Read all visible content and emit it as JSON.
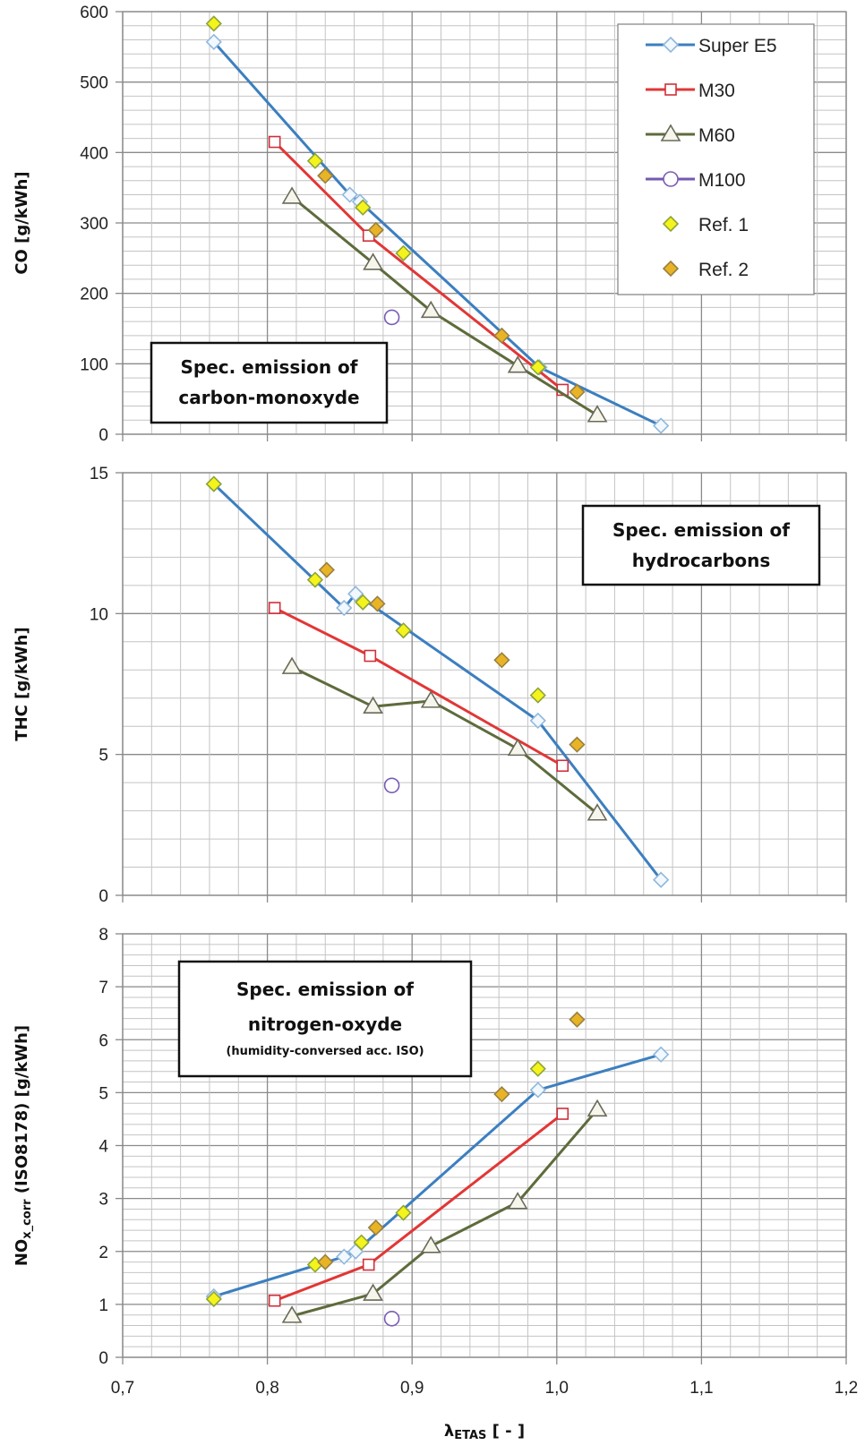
{
  "chart_data": [
    {
      "type": "line",
      "ylabel": "CO [g/kWh]",
      "annotation": [
        "Spec. emission of",
        "carbon-monoxyde"
      ],
      "xlim": [
        0.7,
        1.2
      ],
      "ylim": [
        0,
        600
      ],
      "yticks": [
        "0",
        "100",
        "200",
        "300",
        "400",
        "500",
        "600"
      ],
      "grid": true,
      "legend": "top-right",
      "series": [
        {
          "name": "Super E5",
          "x": [
            0.763,
            0.857,
            0.864,
            0.988,
            1.072
          ],
          "y": [
            557,
            340,
            330,
            95,
            12
          ]
        },
        {
          "name": "M30",
          "x": [
            0.805,
            0.87,
            1.004
          ],
          "y": [
            415,
            282,
            63
          ]
        },
        {
          "name": "M60",
          "x": [
            0.817,
            0.873,
            0.913,
            0.973,
            1.028
          ],
          "y": [
            337,
            243,
            175,
            97,
            27
          ]
        },
        {
          "name": "M100",
          "x": [
            0.886
          ],
          "y": [
            166
          ]
        },
        {
          "name": "Ref. 1",
          "x": [
            0.763,
            0.833,
            0.866,
            0.894,
            0.987
          ],
          "y": [
            583,
            388,
            322,
            257,
            95
          ]
        },
        {
          "name": "Ref. 2",
          "x": [
            0.84,
            0.875,
            0.962,
            1.014
          ],
          "y": [
            367,
            290,
            140,
            60
          ]
        }
      ]
    },
    {
      "type": "line",
      "ylabel": "THC [g/kWh]",
      "annotation": [
        "Spec. emission of",
        "hydrocarbons"
      ],
      "xlim": [
        0.7,
        1.2
      ],
      "ylim": [
        0,
        15
      ],
      "yticks": [
        "0",
        "5",
        "10",
        "15"
      ],
      "grid": true,
      "series": [
        {
          "name": "Super E5",
          "x": [
            0.763,
            0.853,
            0.861,
            0.987,
            1.072
          ],
          "y": [
            14.6,
            10.2,
            10.7,
            6.2,
            0.55
          ]
        },
        {
          "name": "M30",
          "x": [
            0.805,
            0.871,
            1.004
          ],
          "y": [
            10.2,
            8.5,
            4.6
          ]
        },
        {
          "name": "M60",
          "x": [
            0.817,
            0.873,
            0.913,
            0.973,
            1.028
          ],
          "y": [
            8.1,
            6.7,
            6.9,
            5.2,
            2.9
          ]
        },
        {
          "name": "M100",
          "x": [
            0.886
          ],
          "y": [
            3.9
          ]
        },
        {
          "name": "Ref. 1",
          "x": [
            0.763,
            0.833,
            0.866,
            0.894,
            0.987
          ],
          "y": [
            14.6,
            11.2,
            10.4,
            9.4,
            7.1
          ]
        },
        {
          "name": "Ref. 2",
          "x": [
            0.841,
            0.876,
            0.962,
            1.014
          ],
          "y": [
            11.55,
            10.35,
            8.35,
            5.35
          ]
        }
      ]
    },
    {
      "type": "line",
      "ylabel_main": "NO",
      "ylabel_sub": "x_corr",
      "ylabel_rest": " (ISO8178) [g/kWh]",
      "annotation": [
        "Spec. emission of",
        "nitrogen-oxyde",
        "(humidity-conversed acc. ISO)"
      ],
      "xlim": [
        0.7,
        1.2
      ],
      "ylim": [
        0,
        8
      ],
      "yticks": [
        "0",
        "1",
        "2",
        "3",
        "4",
        "5",
        "6",
        "7",
        "8"
      ],
      "xticks": [
        "0,7",
        "0,8",
        "0,9",
        "1,0",
        "1,1",
        "1,2"
      ],
      "xlabel_main": "λ",
      "xlabel_sub": "ETAS",
      "xlabel_rest": " [ - ]",
      "grid": true,
      "series": [
        {
          "name": "Super E5",
          "x": [
            0.763,
            0.853,
            0.861,
            0.987,
            1.072
          ],
          "y": [
            1.15,
            1.9,
            2.0,
            5.05,
            5.72
          ]
        },
        {
          "name": "M30",
          "x": [
            0.805,
            0.87,
            1.004
          ],
          "y": [
            1.07,
            1.75,
            4.6
          ]
        },
        {
          "name": "M60",
          "x": [
            0.817,
            0.873,
            0.913,
            0.973,
            1.028
          ],
          "y": [
            0.78,
            1.2,
            2.1,
            2.93,
            4.68
          ]
        },
        {
          "name": "M100",
          "x": [
            0.886
          ],
          "y": [
            0.73
          ]
        },
        {
          "name": "Ref. 1",
          "x": [
            0.763,
            0.833,
            0.865,
            0.894,
            0.987
          ],
          "y": [
            1.1,
            1.75,
            2.17,
            2.73,
            5.45
          ]
        },
        {
          "name": "Ref. 2",
          "x": [
            0.84,
            0.875,
            0.962,
            1.014
          ],
          "y": [
            1.8,
            2.45,
            4.97,
            6.38
          ]
        }
      ]
    }
  ],
  "legend": [
    "Super E5",
    "M30",
    "M60",
    "M100",
    "Ref. 1",
    "Ref. 2"
  ],
  "styles": {
    "Super E5": {
      "line": "#3c7fc0",
      "marker": "diamond",
      "fill": "#f2f8fd",
      "stroke": "#8fb8de"
    },
    "M30": {
      "line": "#e23636",
      "marker": "square",
      "fill": "#ffffff",
      "stroke": "#d0303a"
    },
    "M60": {
      "line": "#5e6b3c",
      "marker": "triangle",
      "fill": "#f6f6ec",
      "stroke": "#6a6a5a"
    },
    "M100": {
      "line": "#7658b0",
      "marker": "circle",
      "fill": "#ffffff",
      "stroke": "#7a5cb4"
    },
    "Ref. 1": {
      "line": null,
      "marker": "diamond",
      "fill": "#f4f41c",
      "stroke": "#8fa436"
    },
    "Ref. 2": {
      "line": null,
      "marker": "diamond",
      "fill": "#e8b426",
      "stroke": "#9a8040"
    }
  }
}
